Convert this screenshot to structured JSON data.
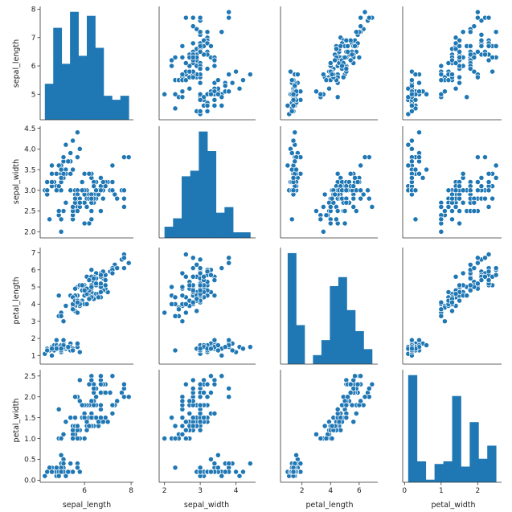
{
  "chart_data": {
    "type": "pairplot",
    "variables": [
      "sepal_length",
      "sepal_width",
      "petal_length",
      "petal_width"
    ],
    "color": "#1f77b4",
    "ranges": {
      "sepal_length": [
        4.1,
        8.1
      ],
      "sepal_width": [
        1.85,
        4.55
      ],
      "petal_length": [
        0.5,
        7.3
      ],
      "petal_width": [
        -0.05,
        2.65
      ]
    },
    "ticks": {
      "sepal_length": [
        5,
        6,
        7,
        8
      ],
      "sepal_width": [
        2.0,
        2.5,
        3.0,
        3.5,
        4.0,
        4.5
      ],
      "petal_length": [
        1,
        2,
        3,
        4,
        5,
        6,
        7
      ],
      "petal_width": [
        0.0,
        0.5,
        1.0,
        1.5,
        2.0,
        2.5
      ]
    },
    "x_axis_ticks": {
      "sepal_length": [
        6,
        8
      ],
      "sepal_width": [
        2,
        3,
        4
      ],
      "petal_length": [
        2,
        4,
        6
      ],
      "petal_width": [
        0,
        1,
        2
      ]
    },
    "tick_labels": {
      "sepal_length": [
        "5",
        "6",
        "7",
        "8"
      ],
      "sepal_width": [
        "2.0",
        "2.5",
        "3.0",
        "3.5",
        "4.0",
        "4.5"
      ],
      "petal_length": [
        "1",
        "2",
        "3",
        "4",
        "5",
        "6",
        "7"
      ],
      "petal_width": [
        "0.0",
        "0.5",
        "1.0",
        "1.5",
        "2.0",
        "2.5"
      ]
    },
    "x_tick_labels": {
      "sepal_length": [
        "6",
        "8"
      ],
      "sepal_width": [
        "2",
        "3",
        "4"
      ],
      "petal_length": [
        "2",
        "4",
        "6"
      ],
      "petal_width": [
        "0",
        "1",
        "2"
      ]
    },
    "histograms": {
      "sepal_length": {
        "edges": [
          4.3,
          4.66,
          5.02,
          5.38,
          5.74,
          6.1,
          6.46,
          6.82,
          7.18,
          7.54,
          7.9
        ],
        "counts": [
          9,
          23,
          14,
          27,
          16,
          26,
          18,
          6,
          5,
          6
        ]
      },
      "sepal_width": {
        "edges": [
          2.0,
          2.24,
          2.48,
          2.72,
          2.96,
          3.2,
          3.44,
          3.68,
          3.92,
          4.16,
          4.4
        ],
        "counts": [
          4,
          7,
          22,
          24,
          38,
          31,
          9,
          11,
          2,
          2
        ]
      },
      "petal_length": {
        "edges": [
          1.0,
          1.59,
          2.18,
          2.77,
          3.36,
          3.95,
          4.54,
          5.13,
          5.72,
          6.31,
          6.9
        ],
        "counts": [
          37,
          13,
          0,
          3,
          8,
          26,
          29,
          18,
          11,
          5
        ]
      },
      "petal_width": {
        "edges": [
          0.1,
          0.34,
          0.58,
          0.82,
          1.06,
          1.3,
          1.54,
          1.78,
          2.02,
          2.26,
          2.5
        ],
        "counts": [
          41,
          8,
          1,
          7,
          8,
          33,
          6,
          23,
          9,
          14
        ]
      }
    },
    "samples": [
      [
        5.1,
        3.5,
        1.4,
        0.2
      ],
      [
        4.9,
        3.0,
        1.4,
        0.2
      ],
      [
        4.7,
        3.2,
        1.3,
        0.2
      ],
      [
        4.6,
        3.1,
        1.5,
        0.2
      ],
      [
        5.0,
        3.6,
        1.4,
        0.2
      ],
      [
        5.4,
        3.9,
        1.7,
        0.4
      ],
      [
        4.6,
        3.4,
        1.4,
        0.3
      ],
      [
        5.0,
        3.4,
        1.5,
        0.2
      ],
      [
        4.4,
        2.9,
        1.4,
        0.2
      ],
      [
        4.9,
        3.1,
        1.5,
        0.1
      ],
      [
        5.4,
        3.7,
        1.5,
        0.2
      ],
      [
        4.8,
        3.4,
        1.6,
        0.2
      ],
      [
        4.8,
        3.0,
        1.4,
        0.1
      ],
      [
        4.3,
        3.0,
        1.1,
        0.1
      ],
      [
        5.8,
        4.0,
        1.2,
        0.2
      ],
      [
        5.7,
        4.4,
        1.5,
        0.4
      ],
      [
        5.4,
        3.9,
        1.3,
        0.4
      ],
      [
        5.1,
        3.5,
        1.4,
        0.3
      ],
      [
        5.7,
        3.8,
        1.7,
        0.3
      ],
      [
        5.1,
        3.8,
        1.5,
        0.3
      ],
      [
        5.4,
        3.4,
        1.7,
        0.2
      ],
      [
        5.1,
        3.7,
        1.5,
        0.4
      ],
      [
        4.6,
        3.6,
        1.0,
        0.2
      ],
      [
        5.1,
        3.3,
        1.7,
        0.5
      ],
      [
        4.8,
        3.4,
        1.9,
        0.2
      ],
      [
        5.0,
        3.0,
        1.6,
        0.2
      ],
      [
        5.0,
        3.4,
        1.6,
        0.4
      ],
      [
        5.2,
        3.5,
        1.5,
        0.2
      ],
      [
        5.2,
        3.4,
        1.4,
        0.2
      ],
      [
        4.7,
        3.2,
        1.6,
        0.2
      ],
      [
        4.8,
        3.1,
        1.6,
        0.2
      ],
      [
        5.4,
        3.4,
        1.5,
        0.4
      ],
      [
        5.2,
        4.1,
        1.5,
        0.1
      ],
      [
        5.5,
        4.2,
        1.4,
        0.2
      ],
      [
        4.9,
        3.1,
        1.5,
        0.2
      ],
      [
        5.0,
        3.2,
        1.2,
        0.2
      ],
      [
        5.5,
        3.5,
        1.3,
        0.2
      ],
      [
        4.9,
        3.6,
        1.4,
        0.1
      ],
      [
        4.4,
        3.0,
        1.3,
        0.2
      ],
      [
        5.1,
        3.4,
        1.5,
        0.2
      ],
      [
        5.0,
        3.5,
        1.3,
        0.3
      ],
      [
        4.5,
        2.3,
        1.3,
        0.3
      ],
      [
        4.4,
        3.2,
        1.3,
        0.2
      ],
      [
        5.0,
        3.5,
        1.6,
        0.6
      ],
      [
        5.1,
        3.8,
        1.9,
        0.4
      ],
      [
        4.8,
        3.0,
        1.4,
        0.3
      ],
      [
        5.1,
        3.8,
        1.6,
        0.2
      ],
      [
        4.6,
        3.2,
        1.4,
        0.2
      ],
      [
        5.3,
        3.7,
        1.5,
        0.2
      ],
      [
        5.0,
        3.3,
        1.4,
        0.2
      ],
      [
        7.0,
        3.2,
        4.7,
        1.4
      ],
      [
        6.4,
        3.2,
        4.5,
        1.5
      ],
      [
        6.9,
        3.1,
        4.9,
        1.5
      ],
      [
        5.5,
        2.3,
        4.0,
        1.3
      ],
      [
        6.5,
        2.8,
        4.6,
        1.5
      ],
      [
        5.7,
        2.8,
        4.5,
        1.3
      ],
      [
        6.3,
        3.3,
        4.7,
        1.6
      ],
      [
        4.9,
        2.4,
        3.3,
        1.0
      ],
      [
        6.6,
        2.9,
        4.6,
        1.3
      ],
      [
        5.2,
        2.7,
        3.9,
        1.4
      ],
      [
        5.0,
        2.0,
        3.5,
        1.0
      ],
      [
        5.9,
        3.0,
        4.2,
        1.5
      ],
      [
        6.0,
        2.2,
        4.0,
        1.0
      ],
      [
        6.1,
        2.9,
        4.7,
        1.4
      ],
      [
        5.6,
        2.9,
        3.6,
        1.3
      ],
      [
        6.7,
        3.1,
        4.4,
        1.4
      ],
      [
        5.6,
        3.0,
        4.5,
        1.5
      ],
      [
        5.8,
        2.7,
        4.1,
        1.0
      ],
      [
        6.2,
        2.2,
        4.5,
        1.5
      ],
      [
        5.6,
        2.5,
        3.9,
        1.1
      ],
      [
        5.9,
        3.2,
        4.8,
        1.8
      ],
      [
        6.1,
        2.8,
        4.0,
        1.3
      ],
      [
        6.3,
        2.5,
        4.9,
        1.5
      ],
      [
        6.1,
        2.8,
        4.7,
        1.2
      ],
      [
        6.4,
        2.9,
        4.3,
        1.3
      ],
      [
        6.6,
        3.0,
        4.4,
        1.4
      ],
      [
        6.8,
        2.8,
        4.8,
        1.4
      ],
      [
        6.7,
        3.0,
        5.0,
        1.7
      ],
      [
        6.0,
        2.9,
        4.5,
        1.5
      ],
      [
        5.7,
        2.6,
        3.5,
        1.0
      ],
      [
        5.5,
        2.4,
        3.8,
        1.1
      ],
      [
        5.5,
        2.4,
        3.7,
        1.0
      ],
      [
        5.8,
        2.7,
        3.9,
        1.2
      ],
      [
        6.0,
        2.7,
        5.1,
        1.6
      ],
      [
        5.4,
        3.0,
        4.5,
        1.5
      ],
      [
        6.0,
        3.4,
        4.5,
        1.6
      ],
      [
        6.7,
        3.1,
        4.7,
        1.5
      ],
      [
        6.3,
        2.3,
        4.4,
        1.3
      ],
      [
        5.6,
        3.0,
        4.1,
        1.3
      ],
      [
        5.5,
        2.5,
        4.0,
        1.3
      ],
      [
        5.5,
        2.6,
        4.4,
        1.2
      ],
      [
        6.1,
        3.0,
        4.6,
        1.4
      ],
      [
        5.8,
        2.6,
        4.0,
        1.2
      ],
      [
        5.0,
        2.3,
        3.3,
        1.0
      ],
      [
        5.6,
        2.7,
        4.2,
        1.3
      ],
      [
        5.7,
        3.0,
        4.2,
        1.2
      ],
      [
        5.7,
        2.9,
        4.2,
        1.3
      ],
      [
        6.2,
        2.9,
        4.3,
        1.3
      ],
      [
        5.1,
        2.5,
        3.0,
        1.1
      ],
      [
        5.7,
        2.8,
        4.1,
        1.3
      ],
      [
        6.3,
        3.3,
        6.0,
        2.5
      ],
      [
        5.8,
        2.7,
        5.1,
        1.9
      ],
      [
        7.1,
        3.0,
        5.9,
        2.1
      ],
      [
        6.3,
        2.9,
        5.6,
        1.8
      ],
      [
        6.5,
        3.0,
        5.8,
        2.2
      ],
      [
        7.6,
        3.0,
        6.6,
        2.1
      ],
      [
        4.9,
        2.5,
        4.5,
        1.7
      ],
      [
        7.3,
        2.9,
        6.3,
        1.8
      ],
      [
        6.7,
        2.5,
        5.8,
        1.8
      ],
      [
        7.2,
        3.6,
        6.1,
        2.5
      ],
      [
        6.5,
        3.2,
        5.1,
        2.0
      ],
      [
        6.4,
        2.7,
        5.3,
        1.9
      ],
      [
        6.8,
        3.0,
        5.5,
        2.1
      ],
      [
        5.7,
        2.5,
        5.0,
        2.0
      ],
      [
        5.8,
        2.8,
        5.1,
        2.4
      ],
      [
        6.4,
        3.2,
        5.3,
        2.3
      ],
      [
        6.5,
        3.0,
        5.5,
        1.8
      ],
      [
        7.7,
        3.8,
        6.7,
        2.2
      ],
      [
        7.7,
        2.6,
        6.9,
        2.3
      ],
      [
        6.0,
        2.2,
        5.0,
        1.5
      ],
      [
        6.9,
        3.2,
        5.7,
        2.3
      ],
      [
        5.6,
        2.8,
        4.9,
        2.0
      ],
      [
        7.7,
        2.8,
        6.7,
        2.0
      ],
      [
        6.3,
        2.7,
        4.9,
        1.8
      ],
      [
        6.7,
        3.3,
        5.7,
        2.1
      ],
      [
        7.2,
        3.2,
        6.0,
        1.8
      ],
      [
        6.2,
        2.8,
        4.8,
        1.8
      ],
      [
        6.1,
        3.0,
        4.9,
        1.8
      ],
      [
        6.4,
        2.8,
        5.6,
        2.1
      ],
      [
        7.2,
        3.0,
        5.8,
        1.6
      ],
      [
        7.4,
        2.8,
        6.1,
        1.9
      ],
      [
        7.9,
        3.8,
        6.4,
        2.0
      ],
      [
        6.4,
        2.8,
        5.6,
        2.2
      ],
      [
        6.3,
        2.8,
        5.1,
        1.5
      ],
      [
        6.1,
        2.6,
        5.6,
        1.4
      ],
      [
        7.7,
        3.0,
        6.1,
        2.3
      ],
      [
        6.3,
        3.4,
        5.6,
        2.4
      ],
      [
        6.4,
        3.1,
        5.5,
        1.8
      ],
      [
        6.0,
        3.0,
        4.8,
        1.8
      ],
      [
        6.9,
        3.1,
        5.4,
        2.1
      ],
      [
        6.7,
        3.1,
        5.6,
        2.4
      ],
      [
        6.9,
        3.1,
        5.1,
        2.3
      ],
      [
        5.8,
        2.7,
        5.1,
        1.9
      ],
      [
        6.8,
        3.2,
        5.9,
        2.3
      ],
      [
        6.7,
        3.3,
        5.7,
        2.5
      ],
      [
        6.7,
        3.0,
        5.2,
        2.3
      ],
      [
        6.3,
        2.5,
        5.0,
        1.9
      ],
      [
        6.5,
        3.0,
        5.2,
        2.0
      ],
      [
        6.2,
        3.4,
        5.4,
        2.3
      ],
      [
        5.9,
        3.0,
        5.1,
        1.8
      ]
    ]
  }
}
